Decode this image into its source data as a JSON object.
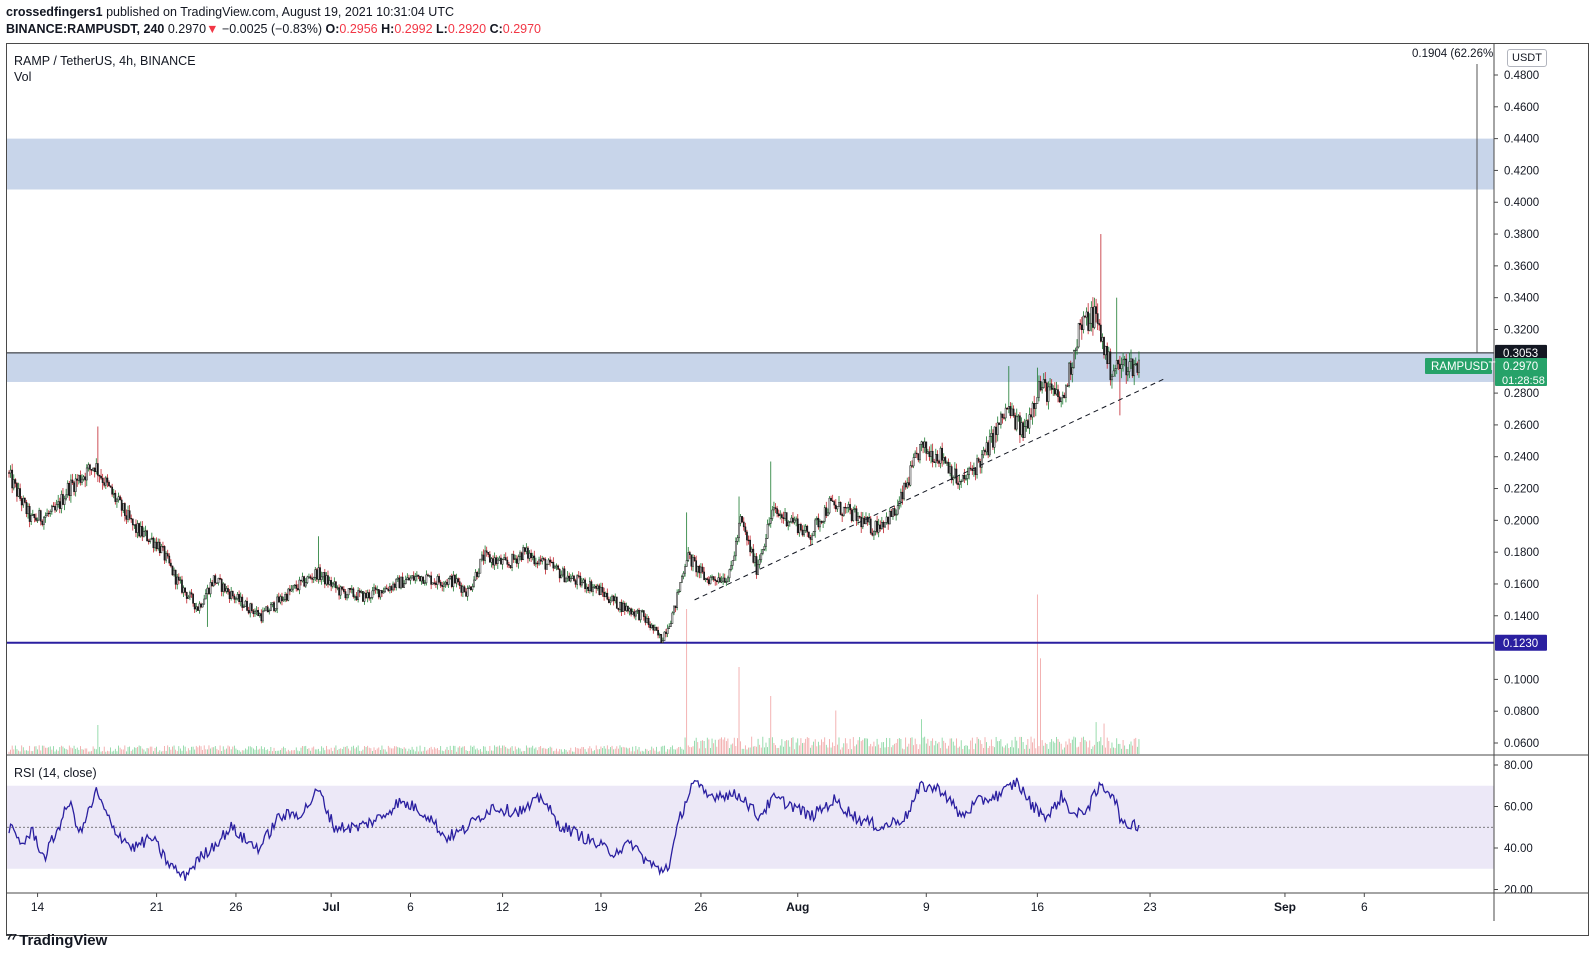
{
  "header": {
    "author": "crossedfingers1",
    "published": "published on TradingView.com, August 19, 2021 10:31:04 UTC",
    "symbol": "BINANCE:RAMPUSDT, 240",
    "last": "0.2970",
    "arrow": "▼",
    "change": "−0.0025 (−0.83%)",
    "o_label": "O:",
    "o_val": "0.2956",
    "h_label": "H:",
    "h_val": "0.2992",
    "l_label": "L:",
    "l_val": "0.2920",
    "c_label": "C:",
    "c_val": "0.2970"
  },
  "legend": {
    "title": "RAMP / TetherUS, 4h, BINANCE",
    "volume": "Vol"
  },
  "price_scale": {
    "currency": "USDT",
    "measure_text": "0.1904 (62.26%",
    "ticks": [
      "0.4800",
      "0.4600",
      "0.4400",
      "0.4200",
      "0.4000",
      "0.3800",
      "0.3600",
      "0.3400",
      "0.3200",
      "0.3000",
      "0.2800",
      "0.2600",
      "0.2400",
      "0.2200",
      "0.2000",
      "0.1800",
      "0.1600",
      "0.1400",
      "0.1200",
      "0.1000",
      "0.0800",
      "0.0600"
    ],
    "tick_values": [
      0.48,
      0.46,
      0.44,
      0.42,
      0.4,
      0.38,
      0.36,
      0.34,
      0.32,
      0.3,
      0.28,
      0.26,
      0.24,
      0.22,
      0.2,
      0.18,
      0.16,
      0.14,
      0.12,
      0.1,
      0.08,
      0.06
    ],
    "hidden_ticks": [
      "0.3000",
      "0.1200"
    ],
    "labels": [
      {
        "text": "0.3053",
        "value": 0.3053,
        "bg": "#131722"
      },
      {
        "text": "0.2970",
        "value": 0.297,
        "bg": "#26a269"
      },
      {
        "text": "0.1230",
        "value": 0.123,
        "bg": "#2a1fa0"
      }
    ],
    "countdown": "01:28:58",
    "symbol_tag": "RAMPUSDT"
  },
  "rsi": {
    "label": "RSI (14, close)",
    "ticks": [
      "80.00",
      "60.00",
      "40.00",
      "20.00"
    ],
    "tick_values": [
      80,
      60,
      40,
      20
    ],
    "band": [
      30,
      70
    ],
    "midline": 50
  },
  "time_axis": {
    "labels": [
      "14",
      "21",
      "26",
      "Jul",
      "6",
      "12",
      "19",
      "26",
      "Aug",
      "9",
      "16",
      "23",
      "Sep",
      "6"
    ],
    "bold": [
      "Jul",
      "Aug",
      "Sep"
    ],
    "label_bars": [
      18,
      93,
      143,
      203,
      253,
      311,
      373,
      436,
      497,
      578,
      648,
      719,
      804,
      854
    ]
  },
  "chart_data": {
    "type": "candlestick",
    "title": "RAMP / TetherUS, 4h, BINANCE",
    "symbol": "BINANCE:RAMPUSDT",
    "interval": "4h",
    "ylim": [
      0.05,
      0.49
    ],
    "zones": [
      {
        "from": 0.408,
        "to": 0.44,
        "color": "#c8d5ea"
      },
      {
        "from": 0.287,
        "to": 0.305,
        "color": "#c8d5ea"
      }
    ],
    "horizontal_lines": [
      {
        "value": 0.3053,
        "color": "#131722"
      },
      {
        "value": 0.123,
        "color": "#2a1fa0"
      }
    ],
    "trendline": {
      "from": {
        "bar": 432,
        "price": 0.15
      },
      "to": {
        "bar": 728,
        "price": 0.289
      },
      "style": "dashed"
    },
    "anchors": [
      [
        0,
        0.23
      ],
      [
        15,
        0.2
      ],
      [
        30,
        0.205
      ],
      [
        38,
        0.22
      ],
      [
        55,
        0.235
      ],
      [
        65,
        0.218
      ],
      [
        80,
        0.195
      ],
      [
        95,
        0.185
      ],
      [
        108,
        0.16
      ],
      [
        120,
        0.145
      ],
      [
        130,
        0.163
      ],
      [
        145,
        0.15
      ],
      [
        160,
        0.14
      ],
      [
        178,
        0.155
      ],
      [
        195,
        0.167
      ],
      [
        210,
        0.155
      ],
      [
        225,
        0.152
      ],
      [
        245,
        0.16
      ],
      [
        260,
        0.165
      ],
      [
        270,
        0.162
      ],
      [
        282,
        0.162
      ],
      [
        290,
        0.155
      ],
      [
        300,
        0.177
      ],
      [
        315,
        0.172
      ],
      [
        325,
        0.18
      ],
      [
        340,
        0.172
      ],
      [
        355,
        0.163
      ],
      [
        370,
        0.158
      ],
      [
        385,
        0.147
      ],
      [
        400,
        0.14
      ],
      [
        412,
        0.125
      ],
      [
        420,
        0.143
      ],
      [
        428,
        0.178
      ],
      [
        440,
        0.163
      ],
      [
        455,
        0.165
      ],
      [
        462,
        0.2
      ],
      [
        472,
        0.17
      ],
      [
        482,
        0.205
      ],
      [
        495,
        0.2
      ],
      [
        505,
        0.19
      ],
      [
        518,
        0.21
      ],
      [
        530,
        0.205
      ],
      [
        545,
        0.195
      ],
      [
        560,
        0.205
      ],
      [
        575,
        0.245
      ],
      [
        590,
        0.24
      ],
      [
        600,
        0.222
      ],
      [
        615,
        0.24
      ],
      [
        630,
        0.27
      ],
      [
        640,
        0.255
      ],
      [
        650,
        0.285
      ],
      [
        665,
        0.275
      ],
      [
        675,
        0.32
      ],
      [
        685,
        0.33
      ],
      [
        695,
        0.295
      ],
      [
        705,
        0.298
      ],
      [
        712,
        0.297
      ]
    ],
    "spikes": [
      {
        "bar": 427,
        "high": 0.205
      },
      {
        "bar": 460,
        "high": 0.215
      },
      {
        "bar": 480,
        "high": 0.237
      },
      {
        "bar": 630,
        "high": 0.297
      },
      {
        "bar": 648,
        "high": 0.296
      },
      {
        "bar": 688,
        "high": 0.38
      },
      {
        "bar": 698,
        "high": 0.34
      },
      {
        "bar": 56,
        "high": 0.259
      },
      {
        "bar": 195,
        "high": 0.19
      },
      {
        "bar": 700,
        "low": 0.266
      },
      {
        "bar": 125,
        "low": 0.133
      }
    ],
    "volume": {
      "base": 0.003,
      "peaks": [
        {
          "bar": 427,
          "value": 0.1
        },
        {
          "bar": 460,
          "value": 0.06
        },
        {
          "bar": 480,
          "value": 0.04
        },
        {
          "bar": 521,
          "value": 0.03
        },
        {
          "bar": 575,
          "value": 0.024
        },
        {
          "bar": 648,
          "value": 0.11
        },
        {
          "bar": 650,
          "value": 0.066
        },
        {
          "bar": 685,
          "value": 0.022
        },
        {
          "bar": 690,
          "value": 0.021
        },
        {
          "bar": 56,
          "value": 0.02
        }
      ]
    },
    "rsi_anchors": [
      [
        0,
        50
      ],
      [
        8,
        42
      ],
      [
        15,
        48
      ],
      [
        22,
        35
      ],
      [
        30,
        48
      ],
      [
        38,
        62
      ],
      [
        45,
        47
      ],
      [
        55,
        67
      ],
      [
        65,
        50
      ],
      [
        78,
        40
      ],
      [
        90,
        45
      ],
      [
        100,
        33
      ],
      [
        110,
        26
      ],
      [
        120,
        35
      ],
      [
        130,
        42
      ],
      [
        140,
        50
      ],
      [
        150,
        43
      ],
      [
        158,
        40
      ],
      [
        170,
        55
      ],
      [
        185,
        57
      ],
      [
        195,
        68
      ],
      [
        205,
        50
      ],
      [
        220,
        50
      ],
      [
        235,
        55
      ],
      [
        245,
        62
      ],
      [
        255,
        60
      ],
      [
        265,
        55
      ],
      [
        275,
        45
      ],
      [
        285,
        48
      ],
      [
        295,
        54
      ],
      [
        305,
        60
      ],
      [
        315,
        58
      ],
      [
        325,
        58
      ],
      [
        336,
        65
      ],
      [
        345,
        52
      ],
      [
        355,
        48
      ],
      [
        370,
        42
      ],
      [
        380,
        38
      ],
      [
        393,
        42
      ],
      [
        400,
        35
      ],
      [
        410,
        29
      ],
      [
        416,
        32
      ],
      [
        423,
        55
      ],
      [
        431,
        72
      ],
      [
        440,
        65
      ],
      [
        450,
        66
      ],
      [
        462,
        65
      ],
      [
        472,
        55
      ],
      [
        482,
        64
      ],
      [
        495,
        60
      ],
      [
        505,
        55
      ],
      [
        520,
        63
      ],
      [
        535,
        54
      ],
      [
        550,
        50
      ],
      [
        565,
        55
      ],
      [
        575,
        70
      ],
      [
        588,
        68
      ],
      [
        600,
        55
      ],
      [
        610,
        62
      ],
      [
        625,
        66
      ],
      [
        635,
        72
      ],
      [
        645,
        60
      ],
      [
        655,
        55
      ],
      [
        663,
        65
      ],
      [
        672,
        55
      ],
      [
        680,
        60
      ],
      [
        688,
        70
      ],
      [
        696,
        66
      ],
      [
        702,
        50
      ],
      [
        708,
        52
      ],
      [
        712,
        51
      ]
    ]
  }
}
